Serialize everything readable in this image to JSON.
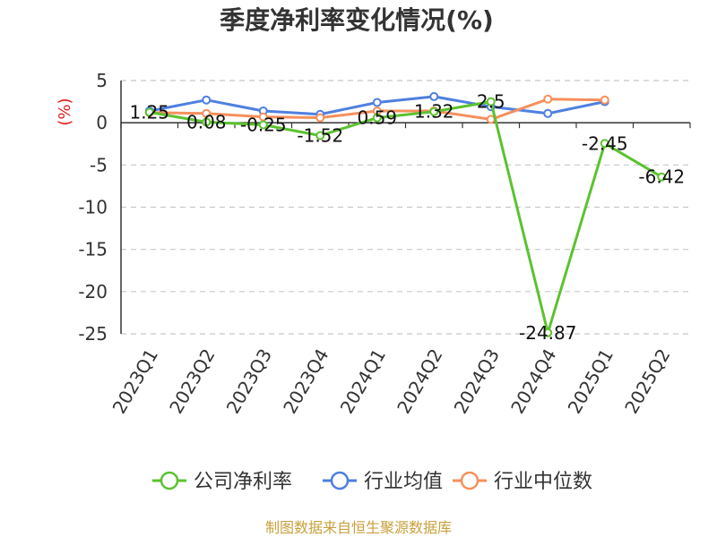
{
  "chart_data": {
    "type": "line",
    "title": "季度净利率变化情况(%)",
    "ylabel": "(%)",
    "xlabel": "",
    "categories": [
      "2023Q1",
      "2023Q2",
      "2023Q3",
      "2023Q4",
      "2024Q1",
      "2024Q2",
      "2024Q3",
      "2024Q4",
      "2025Q1",
      "2025Q2"
    ],
    "ylim": [
      -25,
      5
    ],
    "yticks": [
      5,
      0,
      -5,
      -10,
      -15,
      -20,
      -25
    ],
    "grid": true,
    "legend_position": "bottom",
    "series": [
      {
        "name": "公司净利率",
        "color": "#5cc22f",
        "values": [
          1.25,
          0.08,
          -0.25,
          -1.52,
          0.59,
          1.32,
          2.5,
          -24.87,
          -2.45,
          -6.42
        ],
        "labels": [
          "1.25",
          "0.08",
          "-0.25",
          "-1.52",
          "0.59",
          "1.32",
          "2.5",
          "-24.87",
          "-2.45",
          "-6.42"
        ]
      },
      {
        "name": "行业均值",
        "color": "#4f7fe0",
        "values": [
          1.4,
          2.7,
          1.4,
          1.0,
          2.4,
          3.1,
          1.9,
          1.1,
          2.5,
          null
        ],
        "labels": []
      },
      {
        "name": "行业中位数",
        "color": "#f5905c",
        "values": [
          1.2,
          1.1,
          0.7,
          0.6,
          1.4,
          1.4,
          0.4,
          2.8,
          2.7,
          null
        ],
        "labels": []
      }
    ]
  },
  "source": "制图数据来自恒生聚源数据库"
}
